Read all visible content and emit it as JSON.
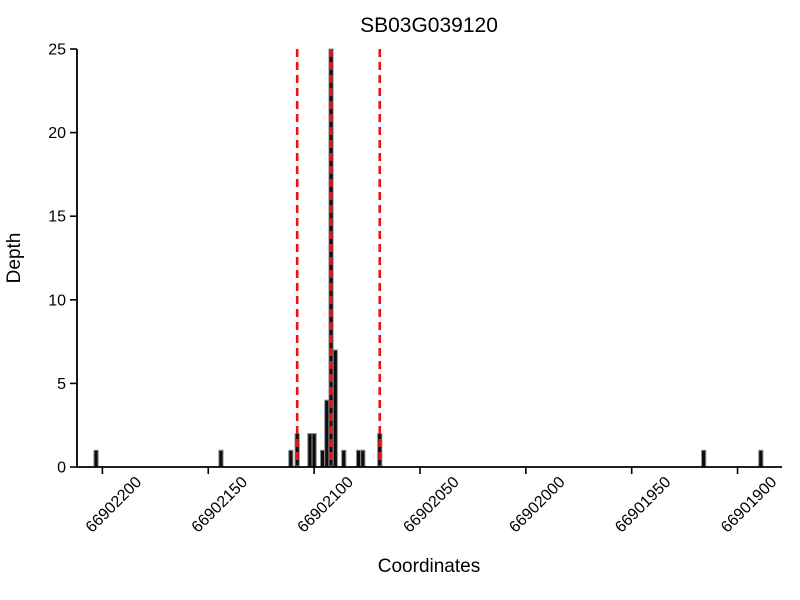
{
  "figure": {
    "background": "#ffffff"
  },
  "chart_data": {
    "type": "bar",
    "title": "SB03G039120",
    "xlabel": "Coordinates",
    "ylabel": "Depth",
    "ylim": [
      0,
      25
    ],
    "yticks": [
      0,
      5,
      10,
      15,
      20,
      25
    ],
    "xticks": [
      66902200,
      66902150,
      66902100,
      66902050,
      66902000,
      66901950,
      66901900
    ],
    "xlim": [
      66902212,
      66901879
    ],
    "x_axis_reversed": true,
    "grid": false,
    "legend": false,
    "bar_width_coords": 2,
    "bars": [
      {
        "coordinate": 66902203,
        "depth": 1
      },
      {
        "coordinate": 66902144,
        "depth": 1
      },
      {
        "coordinate": 66902111,
        "depth": 1
      },
      {
        "coordinate": 66902108,
        "depth": 2
      },
      {
        "coordinate": 66902102,
        "depth": 2
      },
      {
        "coordinate": 66902100,
        "depth": 2
      },
      {
        "coordinate": 66902096,
        "depth": 1
      },
      {
        "coordinate": 66902094,
        "depth": 4
      },
      {
        "coordinate": 66902092,
        "depth": 25
      },
      {
        "coordinate": 66902090,
        "depth": 7
      },
      {
        "coordinate": 66902086,
        "depth": 1
      },
      {
        "coordinate": 66902079,
        "depth": 1
      },
      {
        "coordinate": 66902077,
        "depth": 1
      },
      {
        "coordinate": 66902069,
        "depth": 2
      },
      {
        "coordinate": 66901916,
        "depth": 1
      },
      {
        "coordinate": 66901889,
        "depth": 1
      }
    ],
    "vlines": {
      "coordinates": [
        66902108,
        66902092,
        66902069
      ],
      "style": "dashed",
      "color": "#ee1111"
    },
    "colors": {
      "bar_fill": "#0d0d0d",
      "bar_edge": "#909090",
      "axis": "#000000",
      "text": "#000000",
      "background": "#ffffff"
    }
  }
}
